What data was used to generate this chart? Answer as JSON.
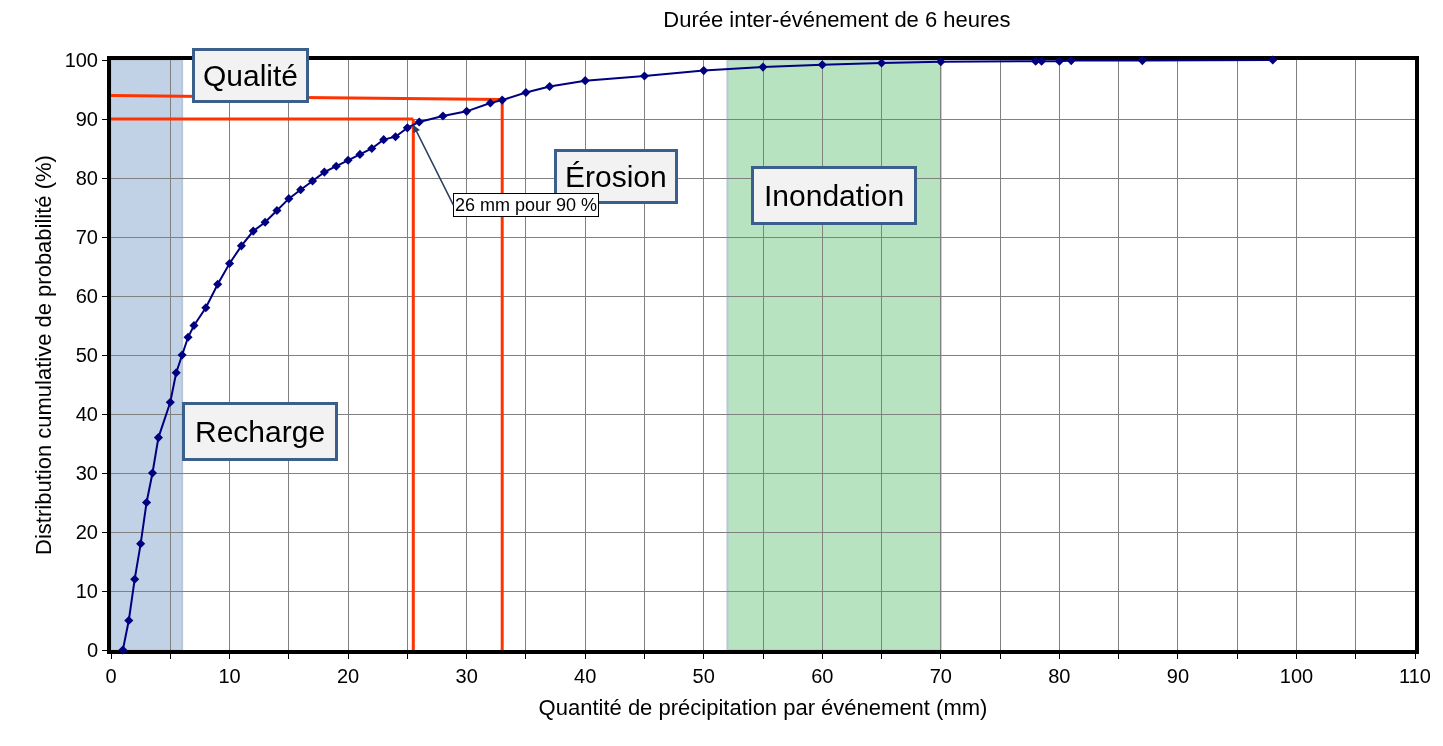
{
  "chart_data": {
    "type": "line",
    "title": "Durée inter-événement de 6 heures",
    "xlabel": "Quantité de précipitation par événement (mm)",
    "ylabel": "Distribution cumulative de probabilité (%)",
    "series": [
      {
        "color": "#ff3300",
        "marker": "none",
        "x": [
          0,
          25.5
        ],
        "values": [
          90,
          90
        ]
      },
      {
        "color": "#ff3300",
        "marker": "none",
        "x": [
          25.5,
          25.5
        ],
        "values": [
          0,
          90
        ]
      },
      {
        "color": "#ff3300",
        "marker": "none",
        "x": [
          0,
          33
        ],
        "values": [
          94,
          93.3
        ]
      },
      {
        "color": "#ff3300",
        "marker": "none",
        "x": [
          33,
          33
        ],
        "values": [
          0,
          93.3
        ]
      },
      {
        "color": "#000080",
        "marker": "diamond",
        "x": [
          1,
          1.5,
          2,
          2.5,
          3,
          3.5,
          4,
          5,
          5.5,
          6,
          6.5,
          7,
          8,
          9,
          10,
          11,
          12,
          13,
          14,
          15,
          16,
          17,
          18,
          19,
          20,
          21,
          22,
          23,
          24,
          25,
          26,
          28,
          30,
          32,
          33,
          35,
          37,
          40,
          45,
          50,
          55,
          60,
          65,
          70,
          78,
          78.5,
          80,
          81,
          87,
          98
        ],
        "values": [
          0,
          5,
          12,
          18,
          25,
          30,
          36,
          42,
          47,
          50,
          53,
          55,
          58,
          62,
          65.5,
          68.5,
          71,
          72.5,
          74.5,
          76.5,
          78,
          79.5,
          81,
          82,
          83,
          84,
          85,
          86.5,
          87,
          88.5,
          89.5,
          90.5,
          91.3,
          92.7,
          93.2,
          94.5,
          95.5,
          96.5,
          97.3,
          98.2,
          98.8,
          99.2,
          99.5,
          99.7,
          99.8,
          99.8,
          99.8,
          99.9,
          99.9,
          100
        ]
      }
    ],
    "bands": [
      {
        "axis": "x",
        "from": 0,
        "to": 6,
        "label": "Recharge",
        "color": "#4f81bd"
      },
      {
        "axis": "x",
        "from": 52,
        "to": 70,
        "label": "Inondation",
        "color": "#33b050"
      }
    ],
    "annotations": [
      "Qualité",
      "Érosion",
      {
        "text": "26 mm pour 90 %",
        "x": 25.5,
        "y": 89
      }
    ],
    "xlim": [
      0,
      110
    ],
    "xticks": [
      0,
      {
        "value": 5,
        "label": null
      },
      10,
      {
        "value": 15,
        "label": null
      },
      20,
      {
        "value": 25,
        "label": null
      },
      30,
      {
        "value": 35,
        "label": null
      },
      40,
      {
        "value": 45,
        "label": null
      },
      50,
      {
        "value": 55,
        "label": null
      },
      60,
      {
        "value": 65,
        "label": null
      },
      70,
      {
        "value": 75,
        "label": null
      },
      80,
      {
        "value": 85,
        "label": null
      },
      90,
      {
        "value": 95,
        "label": null
      },
      100,
      {
        "value": 105,
        "label": null
      },
      110
    ],
    "ylim": [
      0,
      100
    ],
    "yticks": [
      0,
      10,
      20,
      30,
      40,
      50,
      60,
      70,
      80,
      90,
      100
    ],
    "grid": true,
    "line_style": "solid"
  }
}
